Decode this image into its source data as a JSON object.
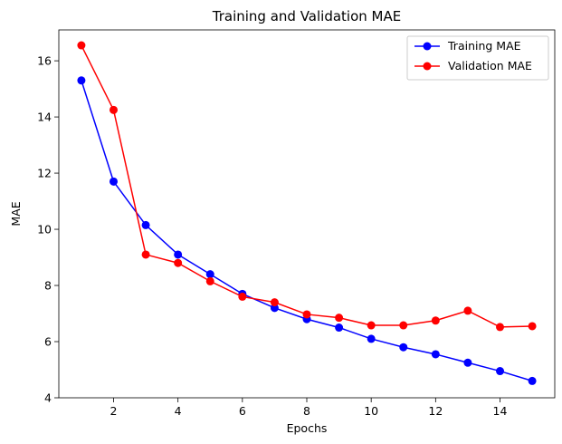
{
  "chart_data": {
    "type": "line",
    "title": "Training and Validation MAE",
    "xlabel": "Epochs",
    "ylabel": "MAE",
    "xlim": [
      0.3,
      15.7
    ],
    "ylim": [
      4,
      17.1
    ],
    "xticks": [
      2,
      4,
      6,
      8,
      10,
      12,
      14
    ],
    "yticks": [
      4,
      6,
      8,
      10,
      12,
      14,
      16
    ],
    "grid": false,
    "legend": "top-right",
    "x": [
      1,
      2,
      3,
      4,
      5,
      6,
      7,
      8,
      9,
      10,
      11,
      12,
      13,
      14,
      15
    ],
    "series": [
      {
        "name": "Training MAE",
        "color": "#0000ff",
        "marker": "circle",
        "values": [
          15.3,
          11.7,
          10.15,
          9.1,
          8.4,
          7.7,
          7.2,
          6.8,
          6.5,
          6.1,
          5.8,
          5.55,
          5.25,
          4.95,
          4.6
        ]
      },
      {
        "name": "Validation MAE",
        "color": "#ff0000",
        "marker": "circle",
        "values": [
          16.55,
          14.25,
          9.1,
          8.8,
          8.15,
          7.6,
          7.4,
          6.97,
          6.85,
          6.58,
          6.58,
          6.75,
          7.1,
          6.52,
          6.55
        ]
      }
    ]
  }
}
